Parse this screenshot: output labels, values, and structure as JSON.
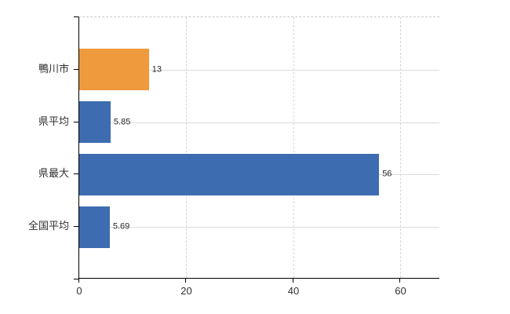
{
  "chart_data": {
    "type": "bar",
    "orientation": "horizontal",
    "title": "",
    "xlabel": "",
    "ylabel": "",
    "categories": [
      "鴨川市",
      "県平均",
      "県最大",
      "全国平均"
    ],
    "values": [
      13,
      5.85,
      56,
      5.69
    ],
    "value_labels": [
      "13",
      "5.85",
      "56",
      "5.69"
    ],
    "bar_colors": [
      "#ee9a3d",
      "#3e6cb0",
      "#3e6cb0",
      "#3e6cb0"
    ],
    "x_ticks": [
      0,
      20,
      40,
      60
    ],
    "x_tick_labels": [
      "0",
      "20",
      "40",
      "60"
    ],
    "xlim": [
      0,
      67.4
    ],
    "grid": true,
    "legend": "none",
    "background_color": "#ffffff",
    "axis_color": "#000000",
    "h_gridline_color": "#d7ddd7",
    "v_gridline_color": "#d6d6d6",
    "plot_top_border_color": "#c9c9c9",
    "text_color": "#303030",
    "value_text_color": "#2a2a2a"
  }
}
